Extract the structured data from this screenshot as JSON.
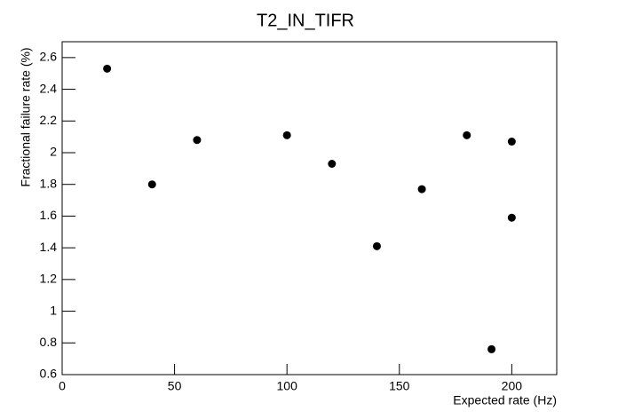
{
  "chart_data": {
    "type": "scatter",
    "title": "T2_IN_TIFR",
    "x_label": "Expected rate (Hz)",
    "y_label": "Fractional failure rate (%)",
    "x": [
      20,
      40,
      60,
      100,
      120,
      140,
      160,
      180,
      200,
      200,
      191
    ],
    "values": [
      2.53,
      1.8,
      2.08,
      2.11,
      1.93,
      1.41,
      1.77,
      2.11,
      2.07,
      1.59,
      0.76
    ],
    "color": "#000000",
    "xlim": [
      0,
      220
    ],
    "xticks": [
      0,
      50,
      100,
      150,
      200
    ],
    "ylim": [
      0.6,
      2.7
    ],
    "yticks": [
      0.6,
      0.8,
      1,
      1.2,
      1.4,
      1.6,
      1.8,
      2,
      2.2,
      2.4,
      2.6
    ],
    "grid": false
  }
}
